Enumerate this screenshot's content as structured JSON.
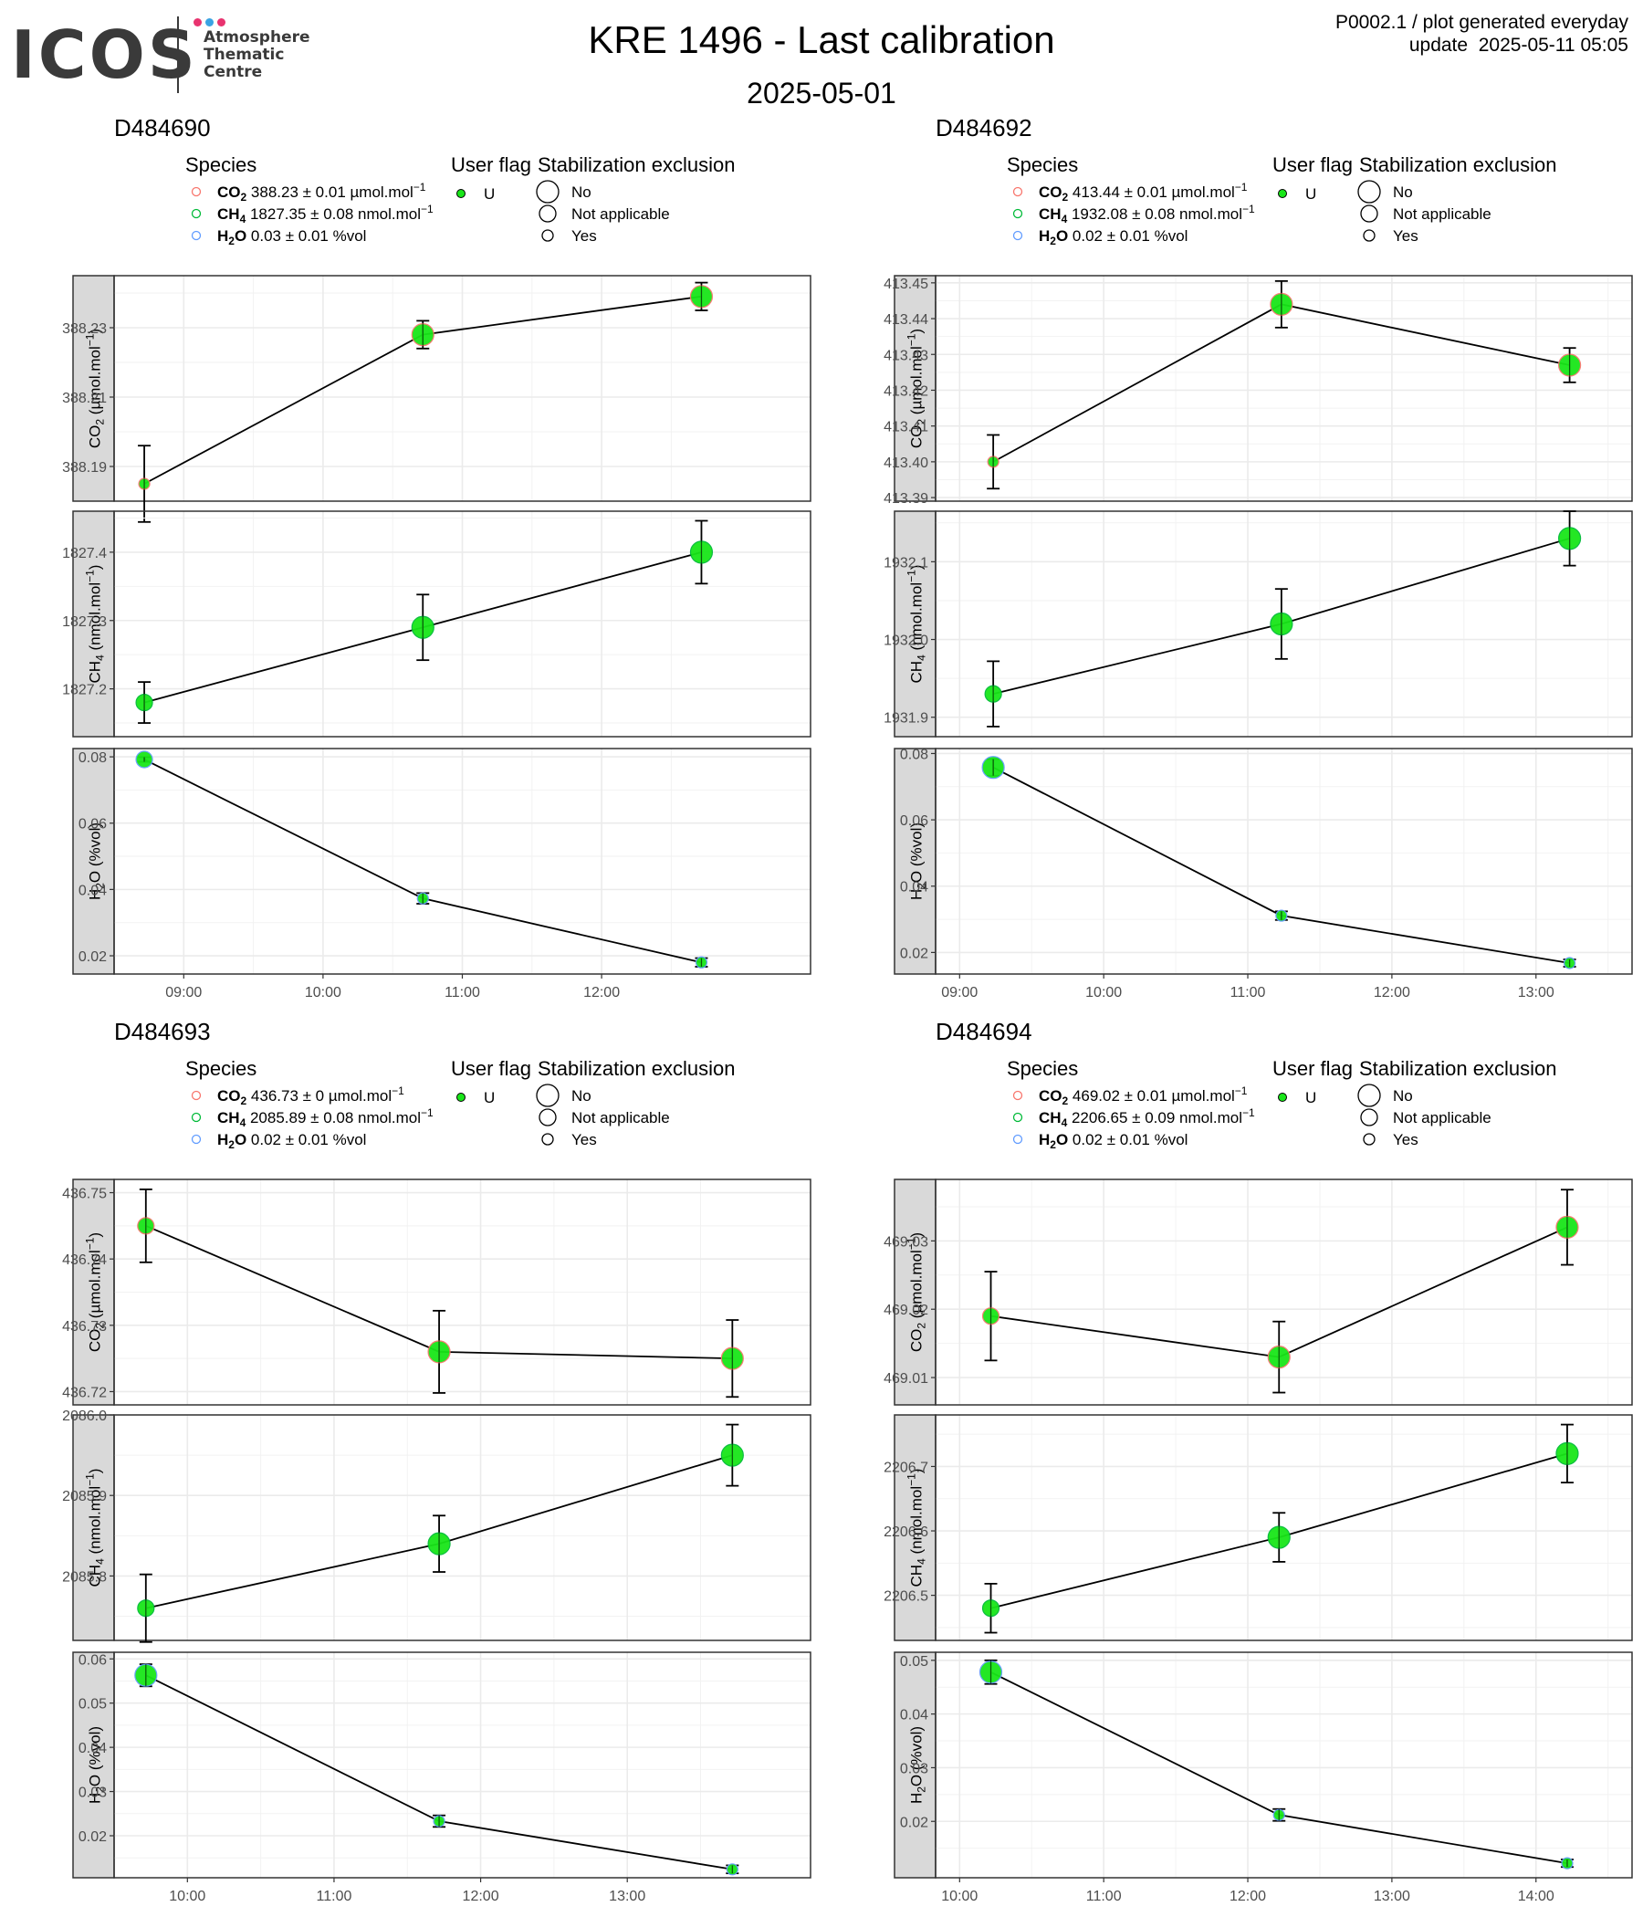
{
  "header": {
    "logo_text": "ICOS",
    "logo_subtitle": "Atmosphere\nThematic\nCentre",
    "logo_dot_colors": [
      "#e8336f",
      "#3aa3e3",
      "#e8336f"
    ],
    "title": "KRE 1496 - Last calibration",
    "subtitle": "2025-05-01",
    "note_line1": "P0002.1 / plot generated everyday",
    "note_line2": "update  2025-05-11 05:05"
  },
  "colors": {
    "CO2": "#f8766d",
    "CH4": "#00ba38",
    "H2O": "#619cff",
    "marker_fill": "#19e619",
    "strip": "#d9d9d9",
    "grid": "#ebebeb"
  },
  "legend_labels": {
    "species_title": "Species",
    "user_flag_title": "User flag",
    "stab_title": "Stabilization exclusion",
    "user_flag_value": "U",
    "stab_values": [
      "No",
      "Not applicable",
      "Yes"
    ]
  },
  "chart_data": [
    {
      "type": "line",
      "panel_title": "D484690",
      "legend": [
        {
          "species": "CO2",
          "text": "388.23 ± 0.01 µmol.mol",
          "sup": "−1"
        },
        {
          "species": "CH4",
          "text": "1827.35 ± 0.08 nmol.mol",
          "sup": "−1"
        },
        {
          "species": "H2O",
          "text": "0.03 ± 0.01 %vol",
          "sup": ""
        }
      ],
      "x": [
        "08:43",
        "10:43",
        "12:43"
      ],
      "xlim": [
        "08:30",
        "13:30"
      ],
      "xticks": [
        "09:00",
        "10:00",
        "11:00",
        "12:00"
      ],
      "facets": [
        {
          "species": "CO2",
          "ylabel": "CO2 (µmol.mol−1)",
          "ylim": [
            388.18,
            388.245
          ],
          "yticks": [
            "388.19",
            "388.21",
            "388.23"
          ],
          "values": [
            388.185,
            388.228,
            388.239
          ],
          "errors": [
            0.011,
            0.004,
            0.004
          ],
          "sizes": [
            "Yes",
            "No",
            "No"
          ]
        },
        {
          "species": "CH4",
          "ylabel": "CH4 (nmol.mol−1)",
          "ylim": [
            1827.13,
            1827.46
          ],
          "yticks": [
            "1827.2",
            "1827.3",
            "1827.4"
          ],
          "values": [
            1827.18,
            1827.29,
            1827.4
          ],
          "errors": [
            0.03,
            0.048,
            0.046
          ],
          "sizes": [
            "Not applicable",
            "No",
            "No"
          ]
        },
        {
          "species": "H2O",
          "ylabel": "H2O (%vol)",
          "ylim": [
            0.0145,
            0.0825
          ],
          "yticks": [
            "0.02",
            "0.04",
            "0.06",
            "0.08"
          ],
          "values": [
            0.0792,
            0.0373,
            0.018
          ],
          "errors": [
            0.0007,
            0.0016,
            0.0013
          ],
          "sizes": [
            "Not applicable",
            "Yes",
            "Yes"
          ]
        }
      ]
    },
    {
      "type": "line",
      "panel_title": "D484692",
      "legend": [
        {
          "species": "CO2",
          "text": "413.44 ± 0.01 µmol.mol",
          "sup": "−1"
        },
        {
          "species": "CH4",
          "text": "1932.08 ± 0.08 nmol.mol",
          "sup": "−1"
        },
        {
          "species": "H2O",
          "text": "0.02 ± 0.01 %vol",
          "sup": ""
        }
      ],
      "x": [
        "09:14",
        "11:14",
        "13:14"
      ],
      "xlim": [
        "08:50",
        "13:40"
      ],
      "xticks": [
        "09:00",
        "10:00",
        "11:00",
        "12:00",
        "13:00"
      ],
      "facets": [
        {
          "species": "CO2",
          "ylabel": "CO2 (µmol.mol−1)",
          "ylim": [
            413.389,
            413.452
          ],
          "yticks": [
            "413.39",
            "413.40",
            "413.41",
            "413.42",
            "413.43",
            "413.44",
            "413.45"
          ],
          "values": [
            413.4,
            413.444,
            413.427
          ],
          "errors": [
            0.0075,
            0.0065,
            0.0048
          ],
          "sizes": [
            "Yes",
            "No",
            "No"
          ]
        },
        {
          "species": "CH4",
          "ylabel": "CH4 (nmol.mol−1)",
          "ylim": [
            1931.875,
            1932.165
          ],
          "yticks": [
            "1931.9",
            "1932.0",
            "1932.1"
          ],
          "values": [
            1931.93,
            1932.02,
            1932.13
          ],
          "errors": [
            0.042,
            0.045,
            0.035
          ],
          "sizes": [
            "Not applicable",
            "No",
            "No"
          ]
        },
        {
          "species": "H2O",
          "ylabel": "H2O (%vol)",
          "ylim": [
            0.0135,
            0.0815
          ],
          "yticks": [
            "0.02",
            "0.04",
            "0.06",
            "0.08"
          ],
          "values": [
            0.0758,
            0.0311,
            0.0168
          ],
          "errors": [
            0.0025,
            0.0013,
            0.0011
          ],
          "sizes": [
            "No",
            "Yes",
            "Yes"
          ]
        }
      ]
    },
    {
      "type": "line",
      "panel_title": "D484693",
      "legend": [
        {
          "species": "CO2",
          "text": "436.73 ± 0 µmol.mol",
          "sup": "−1"
        },
        {
          "species": "CH4",
          "text": "2085.89 ± 0.08 nmol.mol",
          "sup": "−1"
        },
        {
          "species": "H2O",
          "text": "0.02 ± 0.01 %vol",
          "sup": ""
        }
      ],
      "x": [
        "09:43",
        "11:43",
        "13:43"
      ],
      "xlim": [
        "09:30",
        "14:15"
      ],
      "xticks": [
        "10:00",
        "11:00",
        "12:00",
        "13:00"
      ],
      "facets": [
        {
          "species": "CO2",
          "ylabel": "CO2 (µmol.mol−1)",
          "ylim": [
            436.718,
            436.752
          ],
          "yticks": [
            "436.72",
            "436.73",
            "436.74",
            "436.75"
          ],
          "values": [
            436.745,
            436.726,
            436.725
          ],
          "errors": [
            0.0055,
            0.0062,
            0.0058
          ],
          "sizes": [
            "Not applicable",
            "No",
            "No"
          ]
        },
        {
          "species": "CH4",
          "ylabel": "CH4 (nmol.mol−1)",
          "ylim": [
            2085.72,
            2086.0
          ],
          "yticks": [
            "2085.8",
            "2085.9",
            "2086.0"
          ],
          "values": [
            2085.76,
            2085.84,
            2085.95
          ],
          "errors": [
            0.042,
            0.035,
            0.038
          ],
          "sizes": [
            "Not applicable",
            "No",
            "No"
          ]
        },
        {
          "species": "H2O",
          "ylabel": "H2O (%vol)",
          "ylim": [
            0.0105,
            0.0615
          ],
          "yticks": [
            "0.02",
            "0.03",
            "0.04",
            "0.05",
            "0.06"
          ],
          "values": [
            0.0563,
            0.0233,
            0.0124
          ],
          "errors": [
            0.0025,
            0.0013,
            0.0009
          ],
          "sizes": [
            "No",
            "Yes",
            "Yes"
          ]
        }
      ]
    },
    {
      "type": "line",
      "panel_title": "D484694",
      "legend": [
        {
          "species": "CO2",
          "text": "469.02 ± 0.01 µmol.mol",
          "sup": "−1"
        },
        {
          "species": "CH4",
          "text": "2206.65 ± 0.09 nmol.mol",
          "sup": "−1"
        },
        {
          "species": "H2O",
          "text": "0.02 ± 0.01 %vol",
          "sup": ""
        }
      ],
      "x": [
        "10:13",
        "12:13",
        "14:13"
      ],
      "xlim": [
        "09:50",
        "14:40"
      ],
      "xticks": [
        "10:00",
        "11:00",
        "12:00",
        "13:00",
        "14:00"
      ],
      "facets": [
        {
          "species": "CO2",
          "ylabel": "CO2 (µmol.mol−1)",
          "ylim": [
            469.006,
            469.039
          ],
          "yticks": [
            "469.01",
            "469.02",
            "469.03"
          ],
          "values": [
            469.019,
            469.013,
            469.032
          ],
          "errors": [
            0.0065,
            0.0052,
            0.0055
          ],
          "sizes": [
            "Not applicable",
            "No",
            "No"
          ]
        },
        {
          "species": "CH4",
          "ylabel": "CH4 (nmol.mol−1)",
          "ylim": [
            2206.43,
            2206.78
          ],
          "yticks": [
            "2206.5",
            "2206.6",
            "2206.7"
          ],
          "values": [
            2206.48,
            2206.59,
            2206.72
          ],
          "errors": [
            0.038,
            0.038,
            0.045
          ],
          "sizes": [
            "Not applicable",
            "No",
            "No"
          ]
        },
        {
          "species": "H2O",
          "ylabel": "H2O (%vol)",
          "ylim": [
            0.0095,
            0.0515
          ],
          "yticks": [
            "0.02",
            "0.03",
            "0.04",
            "0.05"
          ],
          "values": [
            0.0478,
            0.0212,
            0.0122
          ],
          "errors": [
            0.0022,
            0.0011,
            0.0007
          ],
          "sizes": [
            "No",
            "Yes",
            "Yes"
          ]
        }
      ]
    }
  ]
}
